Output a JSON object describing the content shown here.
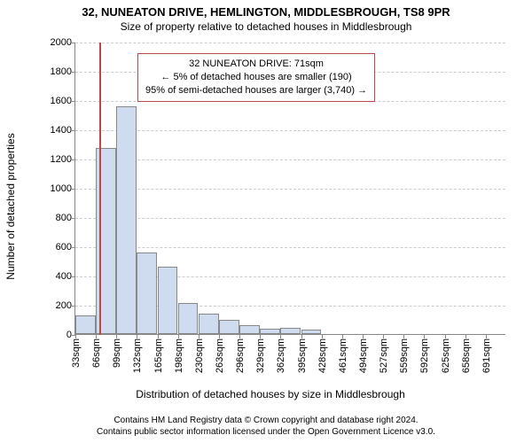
{
  "title": "32, NUNEATON DRIVE, HEMLINGTON, MIDDLESBROUGH, TS8 9PR",
  "subtitle": "Size of property relative to detached houses in Middlesbrough",
  "chart": {
    "type": "bar",
    "y_label": "Number of detached properties",
    "x_label": "Distribution of detached houses by size in Middlesbrough",
    "ylim": [
      0,
      2000
    ],
    "y_ticks": [
      0,
      200,
      400,
      600,
      800,
      1000,
      1200,
      1400,
      1600,
      1800,
      2000
    ],
    "x_categories": [
      "33sqm",
      "66sqm",
      "99sqm",
      "132sqm",
      "165sqm",
      "198sqm",
      "230sqm",
      "263sqm",
      "296sqm",
      "329sqm",
      "362sqm",
      "395sqm",
      "428sqm",
      "461sqm",
      "494sqm",
      "527sqm",
      "559sqm",
      "592sqm",
      "625sqm",
      "658sqm",
      "691sqm"
    ],
    "values": [
      130,
      1270,
      1560,
      560,
      460,
      215,
      140,
      95,
      60,
      35,
      40,
      30,
      0,
      0,
      0,
      0,
      0,
      0,
      0,
      0,
      0
    ],
    "bar_fill": "#cfdcef",
    "bar_border": "#888888",
    "grid_color": "#cccccc",
    "background_color": "#ffffff",
    "marker": {
      "x_value_sqm": 71,
      "color": "#b84a4a"
    }
  },
  "annotation": {
    "line1": "32 NUNEATON DRIVE: 71sqm",
    "line2": "← 5% of detached houses are smaller (190)",
    "line3": "95% of semi-detached houses are larger (3,740) →",
    "border_color": "#b84a4a"
  },
  "footer": {
    "line1": "Contains HM Land Registry data © Crown copyright and database right 2024.",
    "line2": "Contains public sector information licensed under the Open Government Licence v3.0."
  }
}
